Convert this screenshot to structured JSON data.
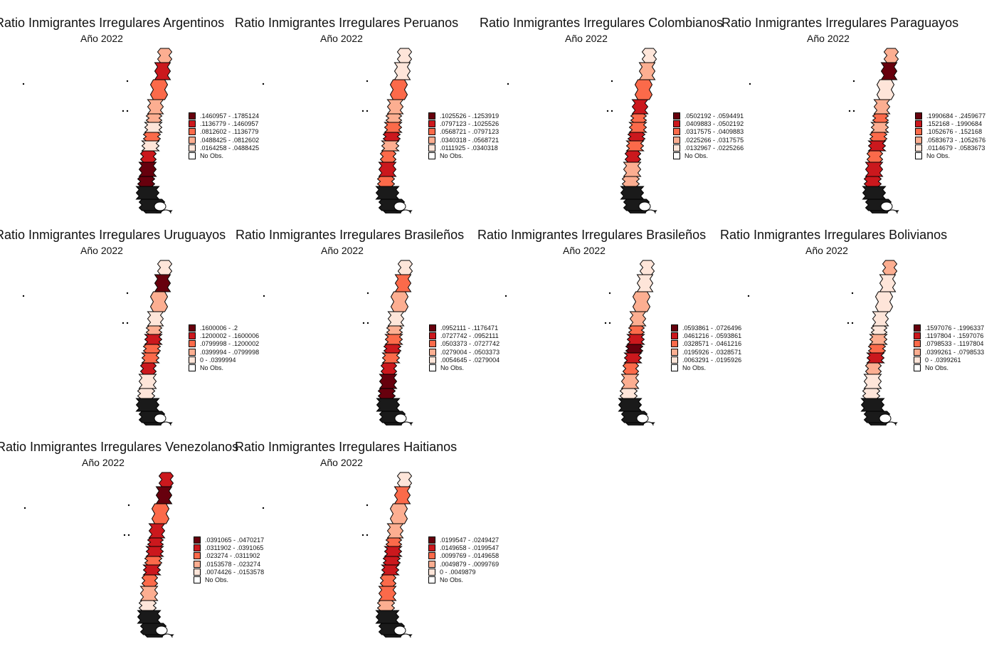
{
  "colors": {
    "ramp": [
      "#fee5d9",
      "#fcae91",
      "#fb6a4a",
      "#cb181d",
      "#67000d"
    ],
    "nodata": "#ffffff",
    "border": "#000000"
  },
  "panels": [
    {
      "title": "Ratio Inmigrantes Irregulares Argentinos",
      "subtitle": "Año 2022",
      "legend": [
        ".1460957 - .1785124",
        ".1136779 - .1460957",
        ".0812602 - .1136779",
        ".0488425 - .0812602",
        ".0164258 - .0488425",
        "No Obs."
      ],
      "region_classes": [
        1,
        3,
        2,
        1,
        1,
        0,
        2,
        0,
        3,
        4,
        4,
        0,
        0,
        0,
        0,
        0
      ]
    },
    {
      "title": "Ratio Inmigrantes Irregulares Peruanos",
      "subtitle": "Año 2022",
      "legend": [
        ".1025526 - .1253919",
        ".0797123 - .1025526",
        ".0568721 - .0797123",
        ".0340318 - .0568721",
        ".0111925 - .0340318",
        "No Obs."
      ],
      "region_classes": [
        0,
        0,
        2,
        1,
        1,
        2,
        3,
        1,
        2,
        3,
        2,
        0,
        0,
        0,
        0,
        0
      ]
    },
    {
      "title": "Ratio Inmigrantes Irregulares Colombianos",
      "subtitle": "Año 2022",
      "legend": [
        ".0502192 - .0594491",
        ".0409883 - .0502192",
        ".0317575 - .0409883",
        ".0225266 - .0317575",
        ".0132967 - .0225266",
        "No Obs."
      ],
      "region_classes": [
        0,
        1,
        2,
        3,
        2,
        2,
        3,
        2,
        3,
        1,
        1,
        0,
        0,
        0,
        0,
        0
      ]
    },
    {
      "title": "Ratio Inmigrantes Irregulares Paraguayos",
      "subtitle": "Año 2022",
      "legend": [
        ".1990684 - .2459677",
        ".152168 - .1990684",
        ".1052676 - .152168",
        ".0583673 - .1052676",
        ".0114679 - .0583673",
        "No Obs."
      ],
      "region_classes": [
        1,
        4,
        0,
        1,
        2,
        1,
        2,
        3,
        2,
        3,
        3,
        0,
        0,
        0,
        0,
        0
      ]
    },
    {
      "title": "Ratio Inmigrantes Irregulares Uruguayos",
      "subtitle": "Año 2022",
      "legend": [
        ".1600006 - .2",
        ".1200002 - .1600006",
        ".0799998 - .1200002",
        ".0399994 - .0799998",
        "0 - .0399994",
        "No Obs."
      ],
      "region_classes": [
        0,
        4,
        1,
        0,
        1,
        3,
        2,
        2,
        3,
        0,
        0,
        0,
        0,
        0,
        0,
        0
      ]
    },
    {
      "title": "Ratio Inmigrantes Irregulares Brasileños",
      "subtitle": "Año 2022",
      "legend": [
        ".0952111 - .1176471",
        ".0727742 - .0952111",
        ".0503373 - .0727742",
        ".0279004 - .0503373",
        ".0054645 - .0279004",
        "No Obs."
      ],
      "region_classes": [
        0,
        2,
        1,
        0,
        1,
        2,
        3,
        2,
        3,
        4,
        4,
        0,
        0,
        0,
        0,
        0
      ]
    },
    {
      "title": "Ratio Inmigrantes Irregulares Brasileños",
      "subtitle": "Año 2022",
      "legend": [
        ".0593861 - .0726496",
        ".0461216 - .0593861",
        ".0328571 - .0461216",
        ".0195926 - .0328571",
        ".0063291 - .0195926",
        "No Obs."
      ],
      "region_classes": [
        0,
        0,
        1,
        1,
        2,
        3,
        4,
        3,
        2,
        1,
        0,
        0,
        0,
        0,
        0,
        0
      ]
    },
    {
      "title": "Ratio Inmigrantes Irregulares Bolivianos",
      "subtitle": "Año 2022",
      "legend": [
        ".1597076 - .1996337",
        ".1197804 - .1597076",
        ".0798533 - .1197804",
        ".0399261 - .0798533",
        "0 - .0399261",
        "No Obs."
      ],
      "region_classes": [
        1,
        0,
        0,
        0,
        0,
        1,
        2,
        3,
        1,
        0,
        0,
        0,
        0,
        0,
        0,
        0
      ]
    },
    {
      "title": "Ratio Inmigrantes Irregulares Venezolanos",
      "subtitle": "Año 2022",
      "legend": [
        ".0391065 - .0470217",
        ".0311902 - .0391065",
        ".023274 - .0311902",
        ".0153578 - .023274",
        ".0074426 - .0153578",
        "No Obs."
      ],
      "region_classes": [
        3,
        4,
        2,
        3,
        3,
        3,
        2,
        3,
        2,
        1,
        0,
        0,
        0,
        0,
        0,
        0
      ]
    },
    {
      "title": "Ratio Inmigrantes Irregulares Haitianos",
      "subtitle": "Año 2022",
      "legend": [
        ".0199547 - .0249427",
        ".0149658 - .0199547",
        ".0099769 - .0149658",
        ".0049879 - .0099769",
        "0 - .0049879",
        "No Obs."
      ],
      "region_classes": [
        0,
        2,
        1,
        1,
        2,
        3,
        3,
        3,
        2,
        2,
        1,
        0,
        0,
        0,
        0,
        0
      ]
    }
  ]
}
